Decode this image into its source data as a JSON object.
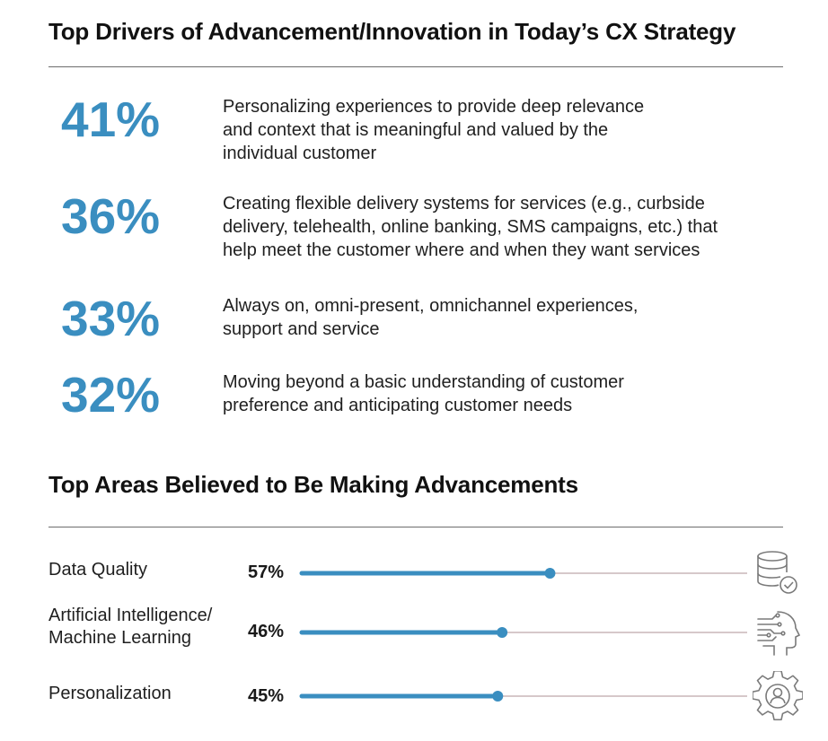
{
  "section1": {
    "title": "Top Drivers of Advancement/Innovation in Today’s CX Strategy",
    "drivers": [
      {
        "percent": "41%",
        "lines": [
          "Personalizing experiences to provide deep relevance",
          "and context that is meaningful and valued by the",
          "individual customer"
        ]
      },
      {
        "percent": "36%",
        "lines": [
          "Creating flexible delivery systems for services (e.g., curbside",
          "delivery, telehealth, online banking, SMS campaigns, etc.) that",
          "help meet the customer where and when they want services"
        ]
      },
      {
        "percent": "33%",
        "lines": [
          "Always on, omni-present, omnichannel experiences,",
          "support and service"
        ]
      },
      {
        "percent": "32%",
        "lines": [
          "Moving beyond a basic understanding of customer",
          "preference and anticipating customer needs"
        ]
      }
    ]
  },
  "section2": {
    "title": "Top Areas Believed to Be Making Advancements"
  },
  "colors": {
    "accent": "#3a8ec0",
    "bar_fill": "#3a8ec0",
    "track": "#c9b6b9",
    "rule": "#6d6d6d",
    "icon": "#7a7a7a"
  },
  "chart_data": {
    "type": "bar",
    "orientation": "horizontal",
    "title": "Top Areas Believed to Be Making Advancements",
    "categories": [
      "Data Quality",
      "Artificial Intelligence/\nMachine Learning",
      "Personalization"
    ],
    "category_lines": [
      [
        "Data Quality"
      ],
      [
        "Artificial Intelligence/",
        "Machine Learning"
      ],
      [
        "Personalization"
      ]
    ],
    "values": [
      57,
      46,
      45
    ],
    "value_labels": [
      "57%",
      "46%",
      "45%"
    ],
    "icons": [
      "database-check-icon",
      "ai-head-icon",
      "gear-person-icon"
    ],
    "xlim": [
      0,
      100
    ],
    "grid": false
  }
}
